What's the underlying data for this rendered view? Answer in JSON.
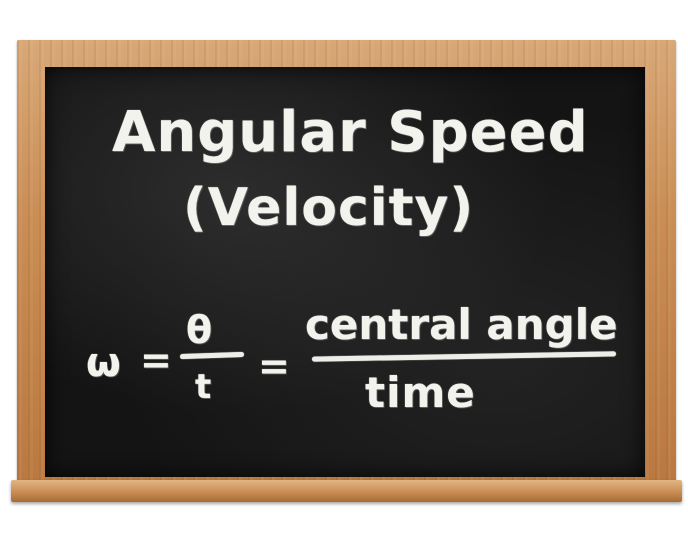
{
  "board": {
    "title_line1": "Angular Speed",
    "title_line2": "(Velocity)",
    "formula": {
      "omega": "ω",
      "equals1": "=",
      "theta": "θ",
      "t": "t",
      "equals2": "=",
      "numerator": "central angle",
      "denominator": "time"
    }
  },
  "colors": {
    "chalkboard": "#141414",
    "chalk": "#f3f3ee",
    "wood": "#c98d55"
  }
}
